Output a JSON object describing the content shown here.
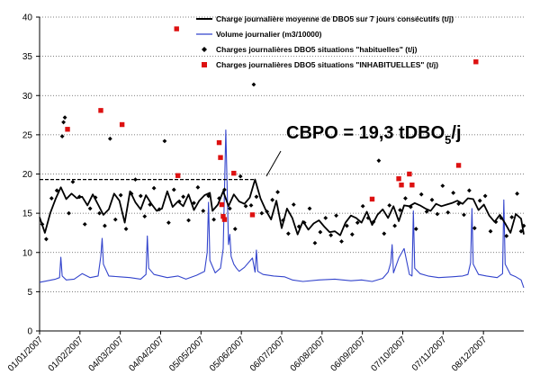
{
  "chart_data": {
    "type": "line",
    "title": "",
    "xlabel": "",
    "ylabel": "",
    "ylim": [
      0,
      40
    ],
    "yticks": [
      "0",
      "5",
      "10",
      "15",
      "20",
      "25",
      "30",
      "35",
      "40"
    ],
    "xticks": [
      "01/01/2007",
      "01/02/2007",
      "04/03/2007",
      "04/04/2007",
      "05/05/2007",
      "05/06/2007",
      "06/07/2007",
      "06/08/2007",
      "06/09/2007",
      "07/10/2007",
      "07/11/2007",
      "08/12/2007"
    ],
    "grid": "horizontal-dotted",
    "legend_position": "top-right",
    "annotation": {
      "text_main": "CBPO = 19,3 tDBO",
      "text_sub": "5",
      "text_tail": "/j",
      "threshold": 19.3
    },
    "colors": {
      "charge_line": "#000000",
      "volume_line": "#3344cc",
      "habituelles": "#000000",
      "inhabituelles": "#dd1111"
    },
    "series": [
      {
        "name": "Charge journalière moyenne de DBO5 sur 7 jours consécutifs (t/j)",
        "style": "line",
        "x": [
          0,
          4,
          8,
          12,
          16,
          20,
          24,
          28,
          32,
          36,
          40,
          44,
          48,
          52,
          56,
          60,
          64,
          68,
          72,
          76,
          80,
          84,
          88,
          92,
          96,
          100,
          104,
          108,
          112,
          116,
          120,
          124,
          128,
          130,
          134,
          138,
          142,
          146,
          150,
          154,
          158,
          162,
          166,
          170,
          174,
          178,
          182,
          186,
          190,
          194,
          198,
          202,
          206,
          210,
          214,
          218,
          222,
          226,
          230,
          234,
          238,
          242,
          246,
          250,
          254,
          258,
          262,
          266,
          270,
          274,
          278,
          282,
          286,
          290,
          294,
          298,
          302,
          306,
          310,
          314,
          318,
          322,
          326,
          330,
          334,
          338,
          342,
          346,
          350,
          354,
          358,
          362,
          364
        ],
        "values": [
          14.5,
          12.5,
          15.0,
          16.8,
          18.3,
          16.8,
          17.5,
          16.9,
          17.1,
          16.0,
          17.4,
          16.1,
          14.8,
          15.5,
          17.5,
          16.6,
          13.8,
          17.8,
          16.4,
          15.5,
          17.3,
          16.2,
          15.3,
          15.6,
          17.8,
          15.8,
          16.5,
          15.9,
          17.4,
          15.4,
          16.6,
          17.3,
          17.6,
          15.3,
          16.1,
          17.8,
          15.9,
          17.4,
          16.5,
          16.2,
          17.0,
          19.3,
          16.9,
          15.4,
          14.2,
          16.6,
          13.1,
          15.6,
          14.4,
          12.3,
          14.0,
          12.9,
          13.7,
          14.1,
          13.3,
          12.6,
          12.7,
          12.2,
          13.8,
          14.7,
          14.4,
          13.8,
          15.2,
          13.5,
          14.8,
          15.5,
          14.4,
          15.9,
          14.0,
          16.0,
          15.9,
          16.3,
          16.0,
          15.6,
          15.3,
          16.2,
          15.9,
          16.1,
          16.3,
          16.6,
          16.2,
          16.9,
          16.8,
          15.4,
          16.1,
          14.7,
          13.9,
          14.8,
          13.7,
          12.5,
          14.9,
          14.3,
          12.3
        ]
      },
      {
        "name": "Volume journalier (m3/10000)",
        "style": "line",
        "x": [
          0,
          6,
          12,
          15,
          16,
          17,
          20,
          26,
          32,
          38,
          44,
          46,
          47,
          48,
          52,
          60,
          68,
          76,
          80,
          81,
          82,
          86,
          96,
          104,
          110,
          118,
          124,
          126,
          127,
          128,
          132,
          136,
          138,
          140,
          142,
          143,
          144,
          146,
          148,
          150,
          154,
          160,
          162,
          163,
          164,
          168,
          176,
          184,
          190,
          198,
          210,
          222,
          234,
          242,
          250,
          258,
          262,
          264,
          265,
          266,
          270,
          274,
          278,
          280,
          281,
          282,
          286,
          292,
          300,
          310,
          318,
          322,
          324,
          325,
          326,
          330,
          336,
          344,
          348,
          349,
          350,
          354,
          358,
          362,
          364
        ],
        "values": [
          6.2,
          6.4,
          6.6,
          6.8,
          9.4,
          7.0,
          6.5,
          6.6,
          7.3,
          6.8,
          7.0,
          9.5,
          11.8,
          8.5,
          7.0,
          6.9,
          6.8,
          6.6,
          7.2,
          12.1,
          8.0,
          7.2,
          6.8,
          7.0,
          6.6,
          7.1,
          7.6,
          10.0,
          16.4,
          9.0,
          7.4,
          8.0,
          10.5,
          25.6,
          11.0,
          12.3,
          9.5,
          8.5,
          8.0,
          7.6,
          8.1,
          9.3,
          7.5,
          10.3,
          7.6,
          7.2,
          7.0,
          6.9,
          6.5,
          6.3,
          6.5,
          6.6,
          6.4,
          6.5,
          6.3,
          6.7,
          7.5,
          8.7,
          11.0,
          7.4,
          9.3,
          10.5,
          7.2,
          7.0,
          15.3,
          8.0,
          7.3,
          7.0,
          6.8,
          6.9,
          7.0,
          7.2,
          8.7,
          15.6,
          8.5,
          7.2,
          7.0,
          6.8,
          7.3,
          16.7,
          8.5,
          7.2,
          6.9,
          6.5,
          5.5
        ]
      },
      {
        "name": "Charges journalières DBO5 situations \"habituelles\" (t/j)",
        "style": "scatter-diamond",
        "x": [
          2,
          5,
          9,
          13,
          17,
          18,
          19,
          22,
          25,
          30,
          34,
          38,
          42,
          45,
          49,
          53,
          57,
          61,
          65,
          69,
          72,
          76,
          79,
          83,
          86,
          90,
          94,
          97,
          101,
          105,
          108,
          112,
          116,
          119,
          123,
          127,
          131,
          135,
          139,
          143,
          147,
          151,
          155,
          159,
          161,
          163,
          167,
          171,
          175,
          179,
          183,
          187,
          191,
          195,
          199,
          203,
          207,
          211,
          215,
          219,
          223,
          227,
          231,
          235,
          239,
          243,
          247,
          251,
          255,
          259,
          263,
          267,
          271,
          275,
          279,
          283,
          287,
          291,
          295,
          299,
          303,
          307,
          311,
          315,
          319,
          323,
          327,
          331,
          335,
          339,
          343,
          347,
          351,
          355,
          359,
          362,
          364
        ],
        "values": [
          13.6,
          11.7,
          16.9,
          17.9,
          24.8,
          26.6,
          27.2,
          15.0,
          19.0,
          17.1,
          13.6,
          15.6,
          17.0,
          15.0,
          13.4,
          24.5,
          14.2,
          17.3,
          13.0,
          17.5,
          19.3,
          17.2,
          14.6,
          16.1,
          18.2,
          15.5,
          24.2,
          13.8,
          18.0,
          16.5,
          17.1,
          14.1,
          16.3,
          18.3,
          15.3,
          17.2,
          14.2,
          16.9,
          18.0,
          15.6,
          13.0,
          19.7,
          15.9,
          16.0,
          31.4,
          17.1,
          15.0,
          15.2,
          16.7,
          17.7,
          14.1,
          12.4,
          16.1,
          13.3,
          13.8,
          15.6,
          11.2,
          12.6,
          14.4,
          12.2,
          14.7,
          11.4,
          13.4,
          12.3,
          13.8,
          15.9,
          14.4,
          13.9,
          21.7,
          12.4,
          16.0,
          13.4,
          15.4,
          16.9,
          15.8,
          13.0,
          17.4,
          15.2,
          16.7,
          14.9,
          18.5,
          15.1,
          17.6,
          16.2,
          14.8,
          17.9,
          13.1,
          16.6,
          17.2,
          12.7,
          13.9,
          14.4,
          12.1,
          14.5,
          17.5,
          12.7,
          13.4
        ]
      },
      {
        "name": "Charges journalières DBO5 situations \"INHABITUELLES\" (t/j)",
        "style": "scatter-square",
        "x": [
          21,
          46,
          62,
          103,
          104,
          135,
          136,
          137,
          138,
          139,
          146,
          160,
          250,
          270,
          272,
          278,
          280,
          315,
          328
        ],
        "values": [
          25.7,
          28.1,
          26.3,
          38.5,
          19.8,
          24.0,
          22.1,
          16.1,
          14.6,
          14.2,
          20.1,
          14.8,
          16.8,
          19.4,
          18.6,
          20.0,
          18.6,
          21.1,
          34.3
        ]
      }
    ]
  }
}
